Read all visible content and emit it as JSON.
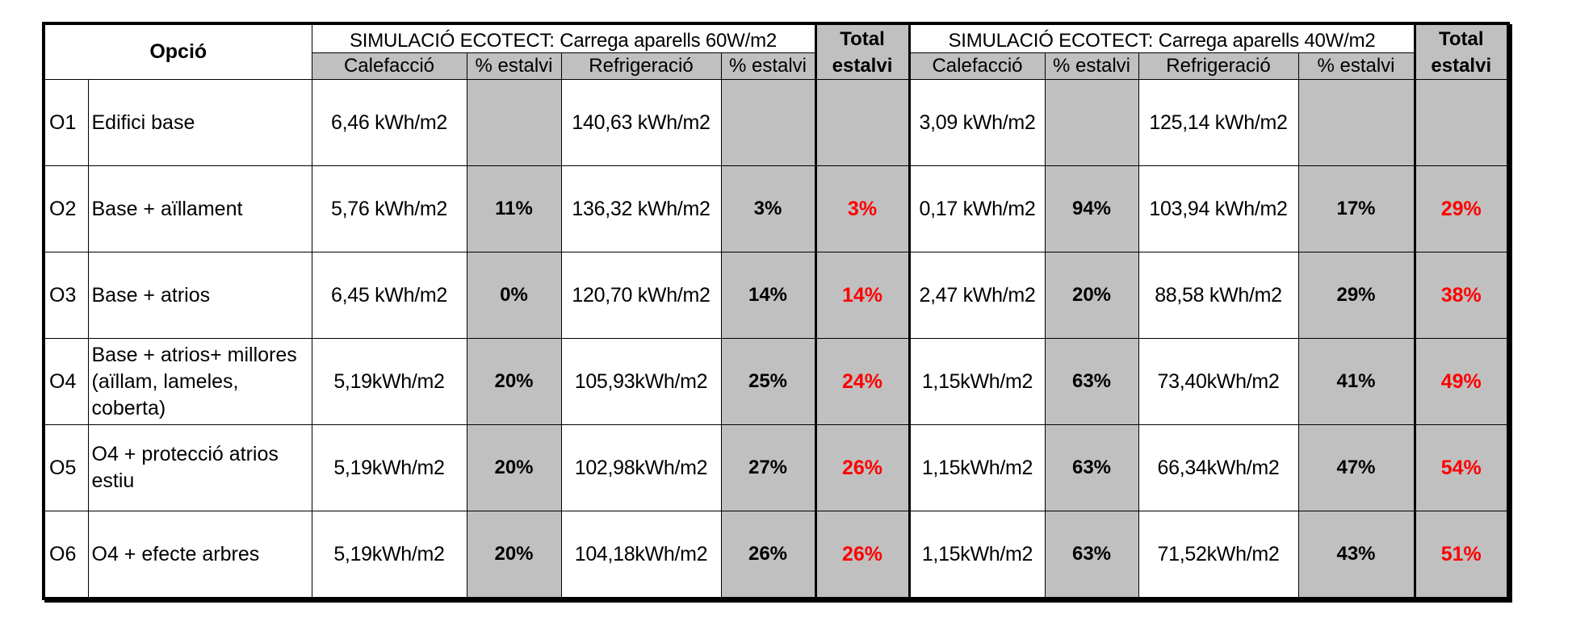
{
  "table": {
    "opcio_header": "Opció",
    "group1_title": "SIMULACIÓ ECOTECT: Carrega aparells 60W/m2",
    "group2_title": "SIMULACIÓ ECOTECT: Carrega aparells 40W/m2",
    "total_label_line1": "Total",
    "total_label_line2": "estalvi",
    "sub_calefaccio": "Calefacció",
    "sub_estalvi": "% estalvi",
    "sub_refrigeracio": "Refrigeració",
    "total_color": "#ff0000",
    "shade_color": "#c0c0c0",
    "rows": [
      {
        "code": "O1",
        "name": "Edifici base",
        "g1_calef": "6,46 kWh/m2",
        "g1_calef_pct": "",
        "g1_refrig": "140,63 kWh/m2",
        "g1_refrig_pct": "",
        "g1_total": "",
        "g2_calef": "3,09 kWh/m2",
        "g2_calef_pct": "",
        "g2_refrig": "125,14 kWh/m2",
        "g2_refrig_pct": "",
        "g2_total": ""
      },
      {
        "code": "O2",
        "name": "Base + aïllament",
        "g1_calef": "5,76 kWh/m2",
        "g1_calef_pct": "11%",
        "g1_refrig": "136,32 kWh/m2",
        "g1_refrig_pct": "3%",
        "g1_total": "3%",
        "g2_calef": "0,17 kWh/m2",
        "g2_calef_pct": "94%",
        "g2_refrig": "103,94 kWh/m2",
        "g2_refrig_pct": "17%",
        "g2_total": "29%"
      },
      {
        "code": "O3",
        "name": "Base + atrios",
        "g1_calef": "6,45 kWh/m2",
        "g1_calef_pct": "0%",
        "g1_refrig": "120,70 kWh/m2",
        "g1_refrig_pct": "14%",
        "g1_total": "14%",
        "g2_calef": "2,47 kWh/m2",
        "g2_calef_pct": "20%",
        "g2_refrig": "88,58 kWh/m2",
        "g2_refrig_pct": "29%",
        "g2_total": "38%"
      },
      {
        "code": "O4",
        "name": "Base + atrios+ millores (aïllam, lameles, coberta)",
        "g1_calef": "5,19kWh/m2",
        "g1_calef_pct": "20%",
        "g1_refrig": "105,93kWh/m2",
        "g1_refrig_pct": "25%",
        "g1_total": "24%",
        "g2_calef": "1,15kWh/m2",
        "g2_calef_pct": "63%",
        "g2_refrig": "73,40kWh/m2",
        "g2_refrig_pct": "41%",
        "g2_total": "49%"
      },
      {
        "code": "O5",
        "name": "O4 + protecció atrios estiu",
        "g1_calef": "5,19kWh/m2",
        "g1_calef_pct": "20%",
        "g1_refrig": "102,98kWh/m2",
        "g1_refrig_pct": "27%",
        "g1_total": "26%",
        "g2_calef": "1,15kWh/m2",
        "g2_calef_pct": "63%",
        "g2_refrig": "66,34kWh/m2",
        "g2_refrig_pct": "47%",
        "g2_total": "54%"
      },
      {
        "code": "O6",
        "name": "O4 + efecte arbres",
        "g1_calef": "5,19kWh/m2",
        "g1_calef_pct": "20%",
        "g1_refrig": "104,18kWh/m2",
        "g1_refrig_pct": "26%",
        "g1_total": "26%",
        "g2_calef": "1,15kWh/m2",
        "g2_calef_pct": "63%",
        "g2_refrig": "71,52kWh/m2",
        "g2_refrig_pct": "43%",
        "g2_total": "51%"
      }
    ]
  }
}
